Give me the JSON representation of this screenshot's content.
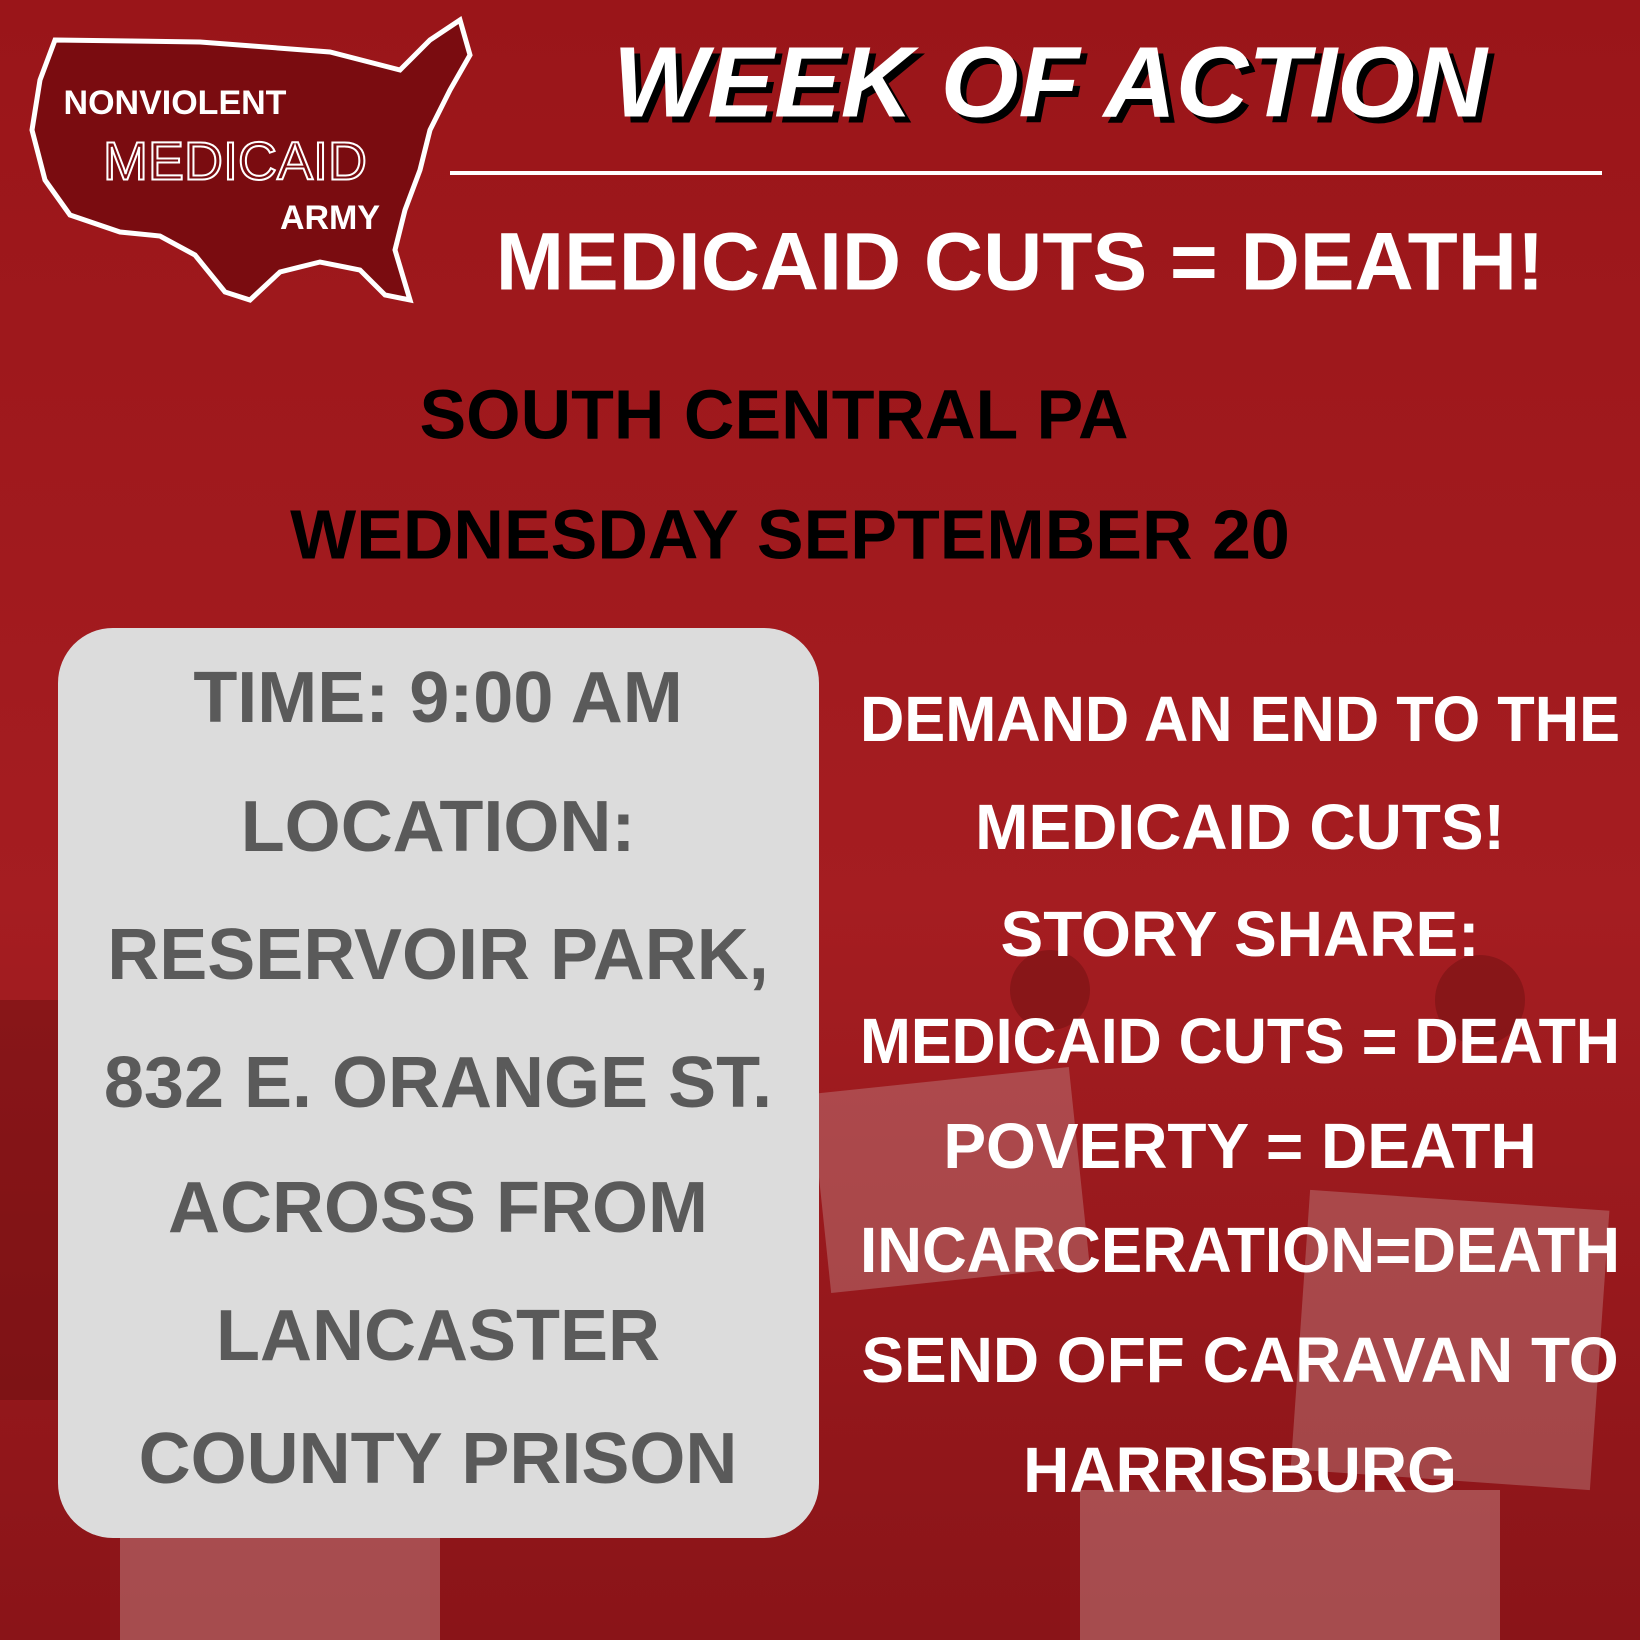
{
  "logo": {
    "line1": "NONVIOLENT",
    "line2": "MEDICAID",
    "line3": "ARMY"
  },
  "header": {
    "title": "WEEK OF ACTION",
    "subtitle": "MEDICAID CUTS = DEATH!"
  },
  "event": {
    "region": "SOUTH CENTRAL PA",
    "date": "WEDNESDAY SEPTEMBER 20"
  },
  "details": [
    "TIME: 9:00 AM",
    "LOCATION:",
    "RESERVOIR PARK,",
    "832 E. ORANGE ST.",
    "ACROSS FROM",
    "LANCASTER",
    "COUNTY PRISON"
  ],
  "agenda": [
    "DEMAND AN END TO THE",
    "MEDICAID CUTS!",
    "STORY SHARE:",
    "MEDICAID CUTS = DEATH",
    "POVERTY  = DEATH",
    "INCARCERATION=DEATH",
    "SEND OFF CARAVAN TO",
    "HARRISBURG"
  ]
}
